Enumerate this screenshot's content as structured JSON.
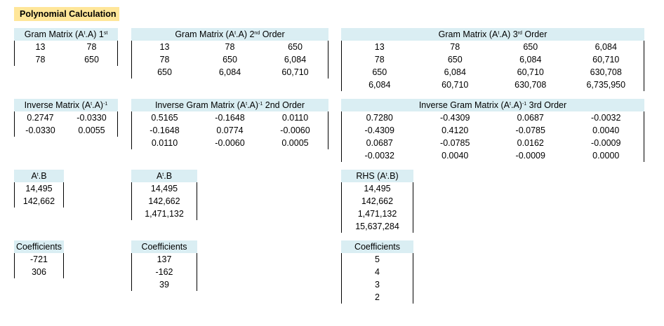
{
  "title": "Polynomial Calculation",
  "gram1": {
    "header": [
      "Gram Matrix  (A",
      "t",
      ".A) 1",
      "st",
      ""
    ],
    "rows": [
      [
        "13",
        "78"
      ],
      [
        "78",
        "650"
      ]
    ]
  },
  "gram2": {
    "header": [
      "Gram Matrix  (A",
      "t",
      ".A) 2",
      "nd",
      " Order"
    ],
    "rows": [
      [
        "13",
        "78",
        "650"
      ],
      [
        "78",
        "650",
        "6,084"
      ],
      [
        "650",
        "6,084",
        "60,710"
      ]
    ]
  },
  "gram3": {
    "header": [
      "Gram Matrix  (A",
      "t",
      ".A) 3",
      "rd",
      " Order"
    ],
    "rows": [
      [
        "13",
        "78",
        "650",
        "6,084"
      ],
      [
        "78",
        "650",
        "6,084",
        "60,710"
      ],
      [
        "650",
        "6,084",
        "60,710",
        "630,708"
      ],
      [
        "6,084",
        "60,710",
        "630,708",
        "6,735,950"
      ]
    ]
  },
  "inv1": {
    "header": [
      "Inverse Matrix  (A",
      "t",
      ".A)",
      "-1",
      ""
    ],
    "rows": [
      [
        "0.2747",
        "-0.0330"
      ],
      [
        "-0.0330",
        "0.0055"
      ]
    ]
  },
  "inv2": {
    "header": [
      "Inverse Gram Matrix  (A",
      "t",
      ".A)",
      "-1",
      " 2nd Order"
    ],
    "rows": [
      [
        "0.5165",
        "-0.1648",
        "0.0110"
      ],
      [
        "-0.1648",
        "0.0774",
        "-0.0060"
      ],
      [
        "0.0110",
        "-0.0060",
        "0.0005"
      ]
    ]
  },
  "inv3": {
    "header": [
      "Inverse Gram Matrix  (A",
      "t",
      ".A)",
      "-1",
      " 3rd Order"
    ],
    "rows": [
      [
        "0.7280",
        "-0.4309",
        "0.0687",
        "-0.0032"
      ],
      [
        "-0.4309",
        "0.4120",
        "-0.0785",
        "0.0040"
      ],
      [
        "0.0687",
        "-0.0785",
        "0.0162",
        "-0.0009"
      ],
      [
        "-0.0032",
        "0.0040",
        "-0.0009",
        "0.0000"
      ]
    ]
  },
  "atb1": {
    "header": [
      "A",
      "t",
      ".B",
      "",
      ""
    ],
    "rows": [
      [
        "14,495"
      ],
      [
        "142,662"
      ]
    ]
  },
  "atb2": {
    "header": [
      "A",
      "t",
      ".B",
      "",
      ""
    ],
    "rows": [
      [
        "14,495"
      ],
      [
        "142,662"
      ],
      [
        "1,471,132"
      ]
    ]
  },
  "atb3": {
    "header": [
      "RHS (A",
      "t",
      ".B)",
      "",
      ""
    ],
    "rows": [
      [
        "14,495"
      ],
      [
        "142,662"
      ],
      [
        "1,471,132"
      ],
      [
        "15,637,284"
      ]
    ]
  },
  "coef1": {
    "header": [
      "Coefficients",
      "",
      "",
      "",
      ""
    ],
    "rows": [
      [
        "-721"
      ],
      [
        "306"
      ]
    ]
  },
  "coef2": {
    "header": [
      "Coefficients",
      "",
      "",
      "",
      ""
    ],
    "rows": [
      [
        "137"
      ],
      [
        "-162"
      ],
      [
        "39"
      ]
    ]
  },
  "coef3": {
    "header": [
      "Coefficients",
      "",
      "",
      "",
      ""
    ],
    "rows": [
      [
        "5"
      ],
      [
        "4"
      ],
      [
        "3"
      ],
      [
        "2"
      ]
    ]
  }
}
